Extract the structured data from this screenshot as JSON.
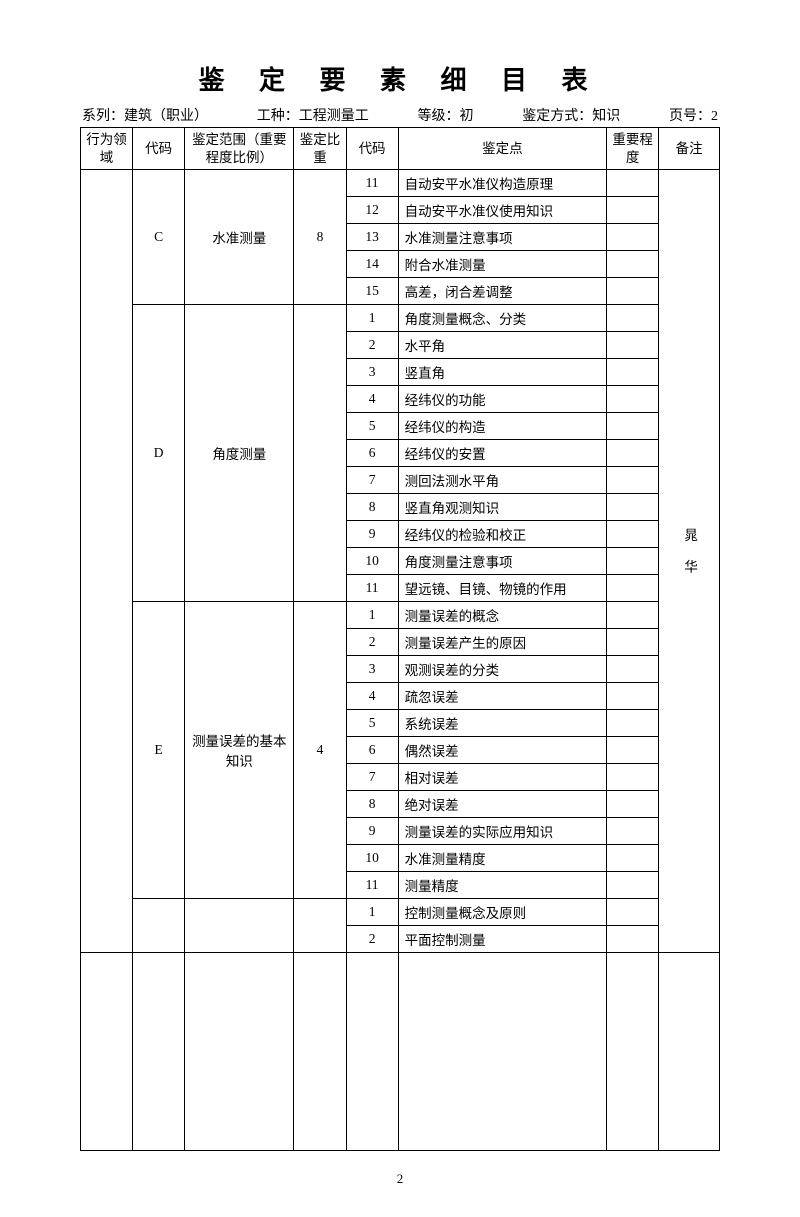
{
  "title": "鉴 定 要 素 细 目 表",
  "meta": {
    "series_label": "系列：",
    "series_value": "建筑（职业）",
    "job_label": "工种：",
    "job_value": "工程测量工",
    "level_label": "等级：",
    "level_value": "初",
    "method_label": "鉴定方式：",
    "method_value": "知识",
    "page_label": "页号：",
    "page_value": "2"
  },
  "headers": {
    "domain": "行为领域",
    "code1": "代码",
    "scope": "鉴定范围（重要程度比例）",
    "weight": "鉴定比重",
    "code2": "代码",
    "point": "鉴定点",
    "importance": "重要程度",
    "note": "备注"
  },
  "sections": [
    {
      "code": "C",
      "scope": "水准测量",
      "weight": "8",
      "items": [
        {
          "n": "11",
          "t": "自动安平水准仪构造原理"
        },
        {
          "n": "12",
          "t": "自动安平水准仪使用知识"
        },
        {
          "n": "13",
          "t": "水准测量注意事项"
        },
        {
          "n": "14",
          "t": "附合水准测量"
        },
        {
          "n": "15",
          "t": "高差，闭合差调整"
        }
      ]
    },
    {
      "code": "D",
      "scope": "角度测量",
      "weight": "",
      "items": [
        {
          "n": "1",
          "t": "角度测量概念、分类"
        },
        {
          "n": "2",
          "t": "水平角"
        },
        {
          "n": "3",
          "t": "竖直角"
        },
        {
          "n": "4",
          "t": "经纬仪的功能"
        },
        {
          "n": "5",
          "t": "经纬仪的构造"
        },
        {
          "n": "6",
          "t": "经纬仪的安置"
        },
        {
          "n": "7",
          "t": "测回法测水平角"
        },
        {
          "n": "8",
          "t": "竖直角观测知识"
        },
        {
          "n": "9",
          "t": "经纬仪的检验和校正"
        },
        {
          "n": "10",
          "t": "角度测量注意事项"
        },
        {
          "n": "11",
          "t": "望远镜、目镜、物镜的作用"
        }
      ]
    },
    {
      "code": "E",
      "scope": "测量误差的基本知识",
      "weight": "4",
      "items": [
        {
          "n": "1",
          "t": "测量误差的概念"
        },
        {
          "n": "2",
          "t": "测量误差产生的原因"
        },
        {
          "n": "3",
          "t": "观测误差的分类"
        },
        {
          "n": "4",
          "t": "疏忽误差"
        },
        {
          "n": "5",
          "t": "系统误差"
        },
        {
          "n": "6",
          "t": "偶然误差"
        },
        {
          "n": "7",
          "t": "相对误差"
        },
        {
          "n": "8",
          "t": "绝对误差"
        },
        {
          "n": "9",
          "t": "测量误差的实际应用知识"
        },
        {
          "n": "10",
          "t": "水准测量精度"
        },
        {
          "n": "11",
          "t": "测量精度"
        }
      ]
    },
    {
      "code": "",
      "scope": "",
      "weight": "",
      "items": [
        {
          "n": "1",
          "t": "控制测量概念及原则"
        },
        {
          "n": "2",
          "t": "平面控制测量"
        }
      ]
    }
  ],
  "note_text": "晁华",
  "page_number": "2"
}
